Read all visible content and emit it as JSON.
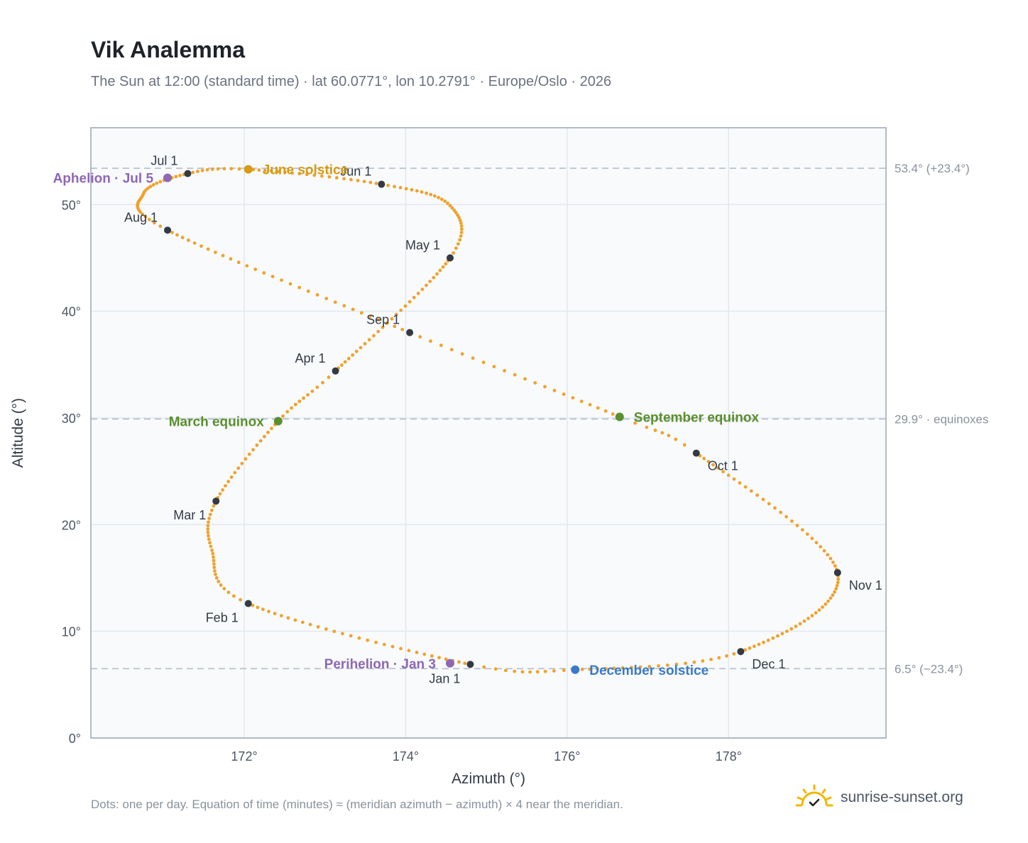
{
  "header": {
    "title": "Vik Analemma",
    "subtitle": "The Sun at 12:00 (standard time) · lat 60.0771°, lon 10.2791° · Europe/Oslo · 2026"
  },
  "footer": {
    "note": "Dots: one per day. Equation of time (minutes) ≈ (meridian azimuth − azimuth) × 4 near the meridian.",
    "brand": "sunrise-sunset.org",
    "brand_icon": "sun-checkmark-logo"
  },
  "colors": {
    "path": "#f0a22b",
    "month_dot": "#333a44",
    "solstice_june": "#d89a14",
    "solstice_december": "#3a7bc8",
    "equinox": "#5b8f2e",
    "apsis": "#8e67b5",
    "reference_line": "#b8c2ce",
    "plot_background": "#f8fafc"
  },
  "chart_data": {
    "type": "scatter",
    "xlabel": "Azimuth (°)",
    "ylabel": "Altitude (°)",
    "xlim": [
      170.1,
      179.95
    ],
    "ylim": [
      0,
      57.2
    ],
    "x_ticks": [
      {
        "value": 172,
        "label": "172°"
      },
      {
        "value": 174,
        "label": "174°"
      },
      {
        "value": 176,
        "label": "176°"
      },
      {
        "value": 178,
        "label": "178°"
      }
    ],
    "y_ticks": [
      {
        "value": 0,
        "label": "0°"
      },
      {
        "value": 10,
        "label": "10°"
      },
      {
        "value": 20,
        "label": "20°"
      },
      {
        "value": 30,
        "label": "30°"
      },
      {
        "value": 40,
        "label": "40°"
      },
      {
        "value": 50,
        "label": "50°"
      }
    ],
    "grid": true,
    "path_knots": [
      {
        "day": 0,
        "az": 174.8,
        "alt": 6.9
      },
      {
        "day": 31,
        "az": 172.05,
        "alt": 12.6
      },
      {
        "day": 46,
        "az": 171.6,
        "alt": 17.6
      },
      {
        "day": 59,
        "az": 171.65,
        "alt": 22.2
      },
      {
        "day": 78,
        "az": 172.42,
        "alt": 29.7
      },
      {
        "day": 90,
        "az": 173.13,
        "alt": 34.4
      },
      {
        "day": 120,
        "az": 174.55,
        "alt": 45.0
      },
      {
        "day": 136,
        "az": 174.55,
        "alt": 49.9
      },
      {
        "day": 151,
        "az": 173.7,
        "alt": 51.9
      },
      {
        "day": 171,
        "az": 172.05,
        "alt": 53.3
      },
      {
        "day": 181,
        "az": 171.3,
        "alt": 52.9
      },
      {
        "day": 195,
        "az": 170.75,
        "alt": 51.0
      },
      {
        "day": 212,
        "az": 171.05,
        "alt": 47.6
      },
      {
        "day": 243,
        "az": 174.05,
        "alt": 38.0
      },
      {
        "day": 265,
        "az": 176.65,
        "alt": 30.1
      },
      {
        "day": 273,
        "az": 177.6,
        "alt": 26.7
      },
      {
        "day": 304,
        "az": 179.35,
        "alt": 15.5
      },
      {
        "day": 334,
        "az": 178.15,
        "alt": 8.1
      },
      {
        "day": 354,
        "az": 176.1,
        "alt": 6.4
      },
      {
        "day": 365,
        "az": 174.8,
        "alt": 6.9
      }
    ],
    "months": [
      {
        "label": "Jan 1",
        "az": 174.8,
        "alt": 6.9,
        "label_pos": "below-left"
      },
      {
        "label": "Feb 1",
        "az": 172.05,
        "alt": 12.6,
        "label_pos": "below-left"
      },
      {
        "label": "Mar 1",
        "az": 171.65,
        "alt": 22.2,
        "label_pos": "below-left"
      },
      {
        "label": "Apr 1",
        "az": 173.13,
        "alt": 34.4,
        "label_pos": "above-left"
      },
      {
        "label": "May 1",
        "az": 174.55,
        "alt": 45.0,
        "label_pos": "above-left"
      },
      {
        "label": "Jun 1",
        "az": 173.7,
        "alt": 51.9,
        "label_pos": "above-left"
      },
      {
        "label": "Jul 1",
        "az": 171.3,
        "alt": 52.9,
        "label_pos": "above-left"
      },
      {
        "label": "Aug 1",
        "az": 171.05,
        "alt": 47.6,
        "label_pos": "above-left"
      },
      {
        "label": "Sep 1",
        "az": 174.05,
        "alt": 38.0,
        "label_pos": "above-left"
      },
      {
        "label": "Oct 1",
        "az": 177.6,
        "alt": 26.7,
        "label_pos": "below-right"
      },
      {
        "label": "Nov 1",
        "az": 179.35,
        "alt": 15.5,
        "label_pos": "below-right"
      },
      {
        "label": "Dec 1",
        "az": 178.15,
        "alt": 8.1,
        "label_pos": "below-right"
      }
    ],
    "events": [
      {
        "label": "June solstice",
        "az": 172.05,
        "alt": 53.3,
        "color": "#d89a14",
        "label_pos": "right"
      },
      {
        "label": "December solstice",
        "az": 176.1,
        "alt": 6.4,
        "color": "#3a7bc8",
        "label_pos": "right"
      },
      {
        "label": "March equinox",
        "az": 172.42,
        "alt": 29.7,
        "color": "#5b8f2e",
        "label_pos": "left"
      },
      {
        "label": "September equinox",
        "az": 176.65,
        "alt": 30.1,
        "color": "#5b8f2e",
        "label_pos": "right"
      },
      {
        "label": "Aphelion · Jul 5",
        "az": 171.05,
        "alt": 52.5,
        "color": "#8e67b5",
        "label_pos": "left"
      },
      {
        "label": "Perihelion · Jan 3",
        "az": 174.55,
        "alt": 7.0,
        "color": "#8e67b5",
        "label_pos": "left"
      }
    ],
    "reference_lines": [
      {
        "alt": 53.4,
        "label": "53.4° (+23.4°)"
      },
      {
        "alt": 29.9,
        "label": "29.9° · equinoxes"
      },
      {
        "alt": 6.5,
        "label": "6.5° (−23.4°)"
      }
    ]
  }
}
